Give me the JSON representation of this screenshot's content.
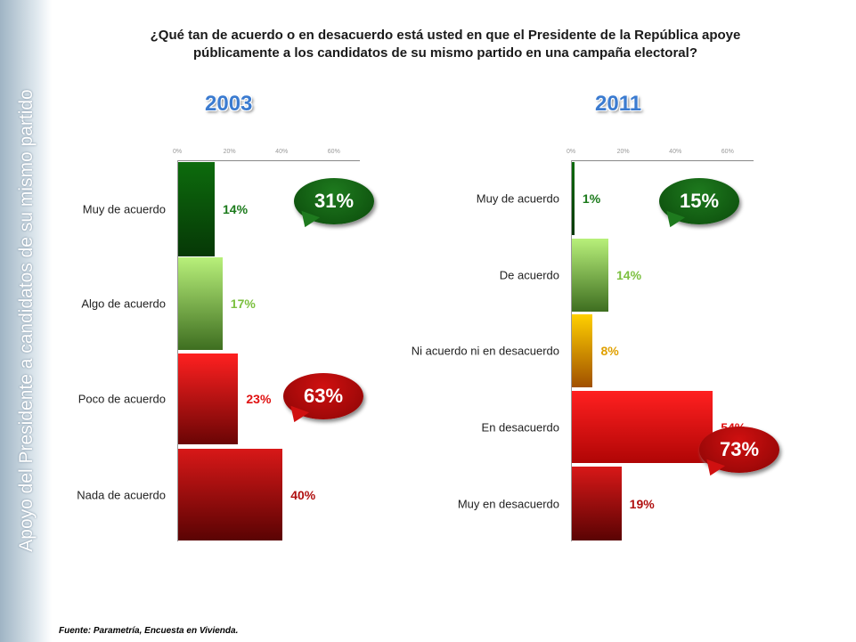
{
  "sidebar_text": "Apoyo del Presidente a candidatos de su mismo partido",
  "title_line1": "¿Qué tan de acuerdo o en desacuerdo está usted en que el Presidente de la República apoye",
  "title_line2": "públicamente a los candidatos de su mismo partido en una campaña electoral?",
  "footer": "Fuente: Parametría, Encuesta en Vivienda.",
  "chart_data": [
    {
      "type": "bar",
      "title": "2003",
      "ticks": [
        "0%",
        "20%",
        "40%",
        "60%"
      ],
      "xlim": [
        0,
        60
      ],
      "categories": [
        "Muy de acuerdo",
        "Algo de acuerdo",
        "Poco de acuerdo",
        "Nada de acuerdo"
      ],
      "values": [
        14,
        17,
        23,
        40
      ],
      "labels": [
        "14%",
        "17%",
        "23%",
        "40%"
      ],
      "bubbles": [
        {
          "text": "31%",
          "color": "#1e7a1e"
        },
        {
          "text": "63%",
          "color": "#d01010"
        }
      ]
    },
    {
      "type": "bar",
      "title": "2011",
      "ticks": [
        "0%",
        "20%",
        "40%",
        "60%"
      ],
      "xlim": [
        0,
        60
      ],
      "categories": [
        "Muy de acuerdo",
        "De acuerdo",
        "Ni acuerdo ni en desacuerdo",
        "En desacuerdo",
        "Muy en desacuerdo"
      ],
      "values": [
        1,
        14,
        8,
        54,
        19
      ],
      "labels": [
        "1%",
        "14%",
        "8%",
        "54%",
        "19%"
      ],
      "bubbles": [
        {
          "text": "15%",
          "color": "#1e7a1e"
        },
        {
          "text": "73%",
          "color": "#d01010"
        }
      ]
    }
  ]
}
